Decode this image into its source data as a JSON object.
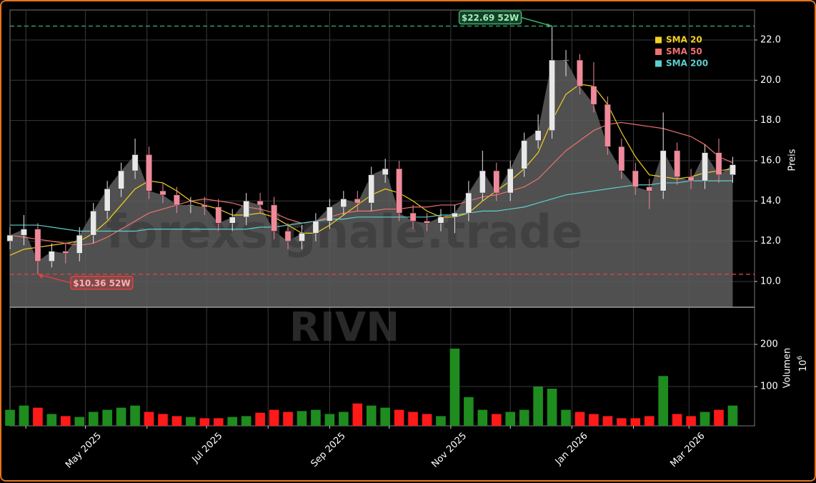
{
  "chart_data": {
    "type": "candlestick",
    "watermark": "forexsignale.trade",
    "symbol": "RIVN",
    "y_label": "Preis",
    "volume_label": "Volumen",
    "volume_scale": {
      "base": "10",
      "exponent": "6"
    },
    "x": [
      0,
      7,
      14,
      21,
      28,
      35,
      42,
      49,
      56,
      63,
      70,
      77,
      84,
      91,
      98,
      105,
      112,
      119,
      126,
      133,
      140,
      147,
      154,
      161,
      168,
      175,
      182,
      189,
      196,
      203,
      210,
      217,
      224,
      231,
      238,
      245,
      252,
      259,
      266,
      273,
      280,
      287,
      294,
      301,
      308,
      315,
      322,
      329,
      336,
      343,
      350,
      357,
      364
    ],
    "open": [
      12.0,
      12.3,
      12.6,
      11.0,
      11.5,
      11.4,
      12.3,
      13.5,
      14.6,
      15.5,
      16.3,
      14.5,
      14.3,
      13.8,
      13.8,
      13.7,
      12.9,
      13.2,
      14.0,
      13.8,
      12.5,
      12.0,
      12.4,
      13.0,
      13.7,
      14.1,
      13.9,
      15.3,
      15.6,
      13.4,
      13.0,
      12.9,
      13.2,
      13.4,
      14.4,
      15.5,
      14.4,
      15.6,
      17.0,
      17.5,
      21.0,
      21.0,
      19.7,
      18.8,
      16.7,
      15.5,
      14.7,
      14.5,
      16.5,
      15.2,
      15.0,
      16.4,
      15.3
    ],
    "high": [
      12.7,
      13.3,
      12.9,
      11.9,
      11.9,
      12.7,
      13.9,
      15.0,
      15.9,
      17.1,
      16.7,
      14.9,
      14.7,
      14.2,
      14.2,
      14.1,
      13.6,
      14.4,
      14.4,
      14.2,
      12.9,
      12.8,
      13.4,
      14.1,
      14.5,
      14.5,
      15.7,
      16.1,
      16.0,
      13.8,
      13.4,
      13.6,
      13.8,
      15.0,
      16.5,
      15.9,
      16.0,
      17.4,
      18.3,
      22.69,
      21.5,
      21.3,
      20.9,
      19.2,
      17.1,
      15.9,
      15.1,
      18.4,
      16.9,
      15.6,
      16.8,
      17.1,
      16.2
    ],
    "low": [
      11.6,
      11.8,
      10.36,
      10.7,
      10.9,
      11.0,
      11.9,
      13.1,
      14.2,
      15.1,
      14.1,
      13.9,
      13.4,
      13.4,
      13.3,
      12.5,
      12.5,
      12.8,
      13.4,
      12.1,
      11.6,
      11.6,
      12.0,
      12.6,
      13.3,
      13.5,
      13.5,
      14.9,
      13.0,
      12.6,
      12.5,
      12.5,
      12.4,
      13.0,
      14.0,
      14.0,
      14.0,
      15.2,
      16.6,
      17.1,
      20.2,
      19.3,
      18.4,
      16.3,
      15.1,
      14.3,
      13.6,
      14.1,
      14.8,
      14.6,
      14.6,
      14.9,
      14.9
    ],
    "close": [
      12.3,
      12.6,
      11.0,
      11.5,
      11.4,
      12.3,
      13.5,
      14.6,
      15.5,
      16.3,
      14.5,
      14.3,
      13.8,
      13.8,
      13.7,
      12.9,
      13.2,
      14.0,
      13.8,
      12.5,
      12.0,
      12.4,
      13.0,
      13.7,
      14.1,
      13.9,
      15.3,
      15.6,
      13.4,
      13.0,
      12.9,
      13.2,
      13.4,
      14.4,
      15.5,
      14.4,
      15.6,
      17.0,
      17.5,
      21.0,
      21.0,
      19.7,
      18.8,
      16.7,
      15.5,
      14.7,
      14.5,
      16.5,
      15.2,
      15.0,
      16.4,
      15.3,
      15.8
    ],
    "volume": [
      45,
      55,
      50,
      35,
      30,
      28,
      40,
      45,
      50,
      55,
      40,
      35,
      30,
      28,
      25,
      25,
      28,
      30,
      38,
      45,
      40,
      42,
      45,
      35,
      40,
      60,
      55,
      50,
      45,
      40,
      35,
      30,
      190,
      75,
      45,
      35,
      40,
      45,
      100,
      95,
      45,
      40,
      35,
      30,
      25,
      25,
      30,
      125,
      35,
      30,
      40,
      45,
      55
    ],
    "up_color": "#e8e8e8",
    "down_color": "#f08a9a",
    "volume_up_color": "#1e8c1e",
    "volume_down_color": "#ff1a1a",
    "area_color": "#5e5e5e",
    "series": [
      {
        "name": "SMA 20",
        "color": "#f5d020",
        "values": [
          11.3,
          11.6,
          11.7,
          11.8,
          11.9,
          12.0,
          12.4,
          13.0,
          13.8,
          14.6,
          15.0,
          14.9,
          14.5,
          14.0,
          13.8,
          13.6,
          13.3,
          13.3,
          13.4,
          13.2,
          12.8,
          12.4,
          12.4,
          12.8,
          13.3,
          13.8,
          14.3,
          14.6,
          14.4,
          14.0,
          13.5,
          13.2,
          13.2,
          13.4,
          14.0,
          14.5,
          15.0,
          15.6,
          16.4,
          18.0,
          19.3,
          19.8,
          19.7,
          18.8,
          17.4,
          16.2,
          15.3,
          15.2,
          15.1,
          15.2,
          15.4,
          15.5,
          15.6
        ]
      },
      {
        "name": "SMA 50",
        "color": "#f07070",
        "values": [
          12.3,
          12.2,
          12.1,
          12.0,
          11.9,
          11.8,
          11.9,
          12.2,
          12.6,
          13.0,
          13.4,
          13.6,
          13.8,
          14.0,
          14.1,
          14.0,
          13.9,
          13.7,
          13.6,
          13.4,
          13.1,
          12.9,
          13.0,
          13.2,
          13.4,
          13.5,
          13.5,
          13.6,
          13.6,
          13.7,
          13.7,
          13.8,
          13.8,
          14.0,
          14.2,
          14.3,
          14.5,
          14.7,
          15.1,
          15.8,
          16.5,
          17.0,
          17.5,
          17.8,
          17.9,
          17.8,
          17.7,
          17.6,
          17.4,
          17.2,
          16.8,
          16.2,
          15.9
        ]
      },
      {
        "name": "SMA 200",
        "color": "#5ecfcf",
        "values": [
          12.8,
          12.8,
          12.8,
          12.7,
          12.6,
          12.5,
          12.5,
          12.5,
          12.5,
          12.5,
          12.6,
          12.6,
          12.6,
          12.6,
          12.6,
          12.6,
          12.6,
          12.6,
          12.7,
          12.7,
          12.8,
          12.9,
          13.0,
          13.1,
          13.1,
          13.2,
          13.2,
          13.2,
          13.2,
          13.2,
          13.2,
          13.3,
          13.3,
          13.4,
          13.5,
          13.5,
          13.6,
          13.7,
          13.9,
          14.1,
          14.3,
          14.4,
          14.5,
          14.6,
          14.7,
          14.8,
          14.8,
          14.9,
          14.9,
          15.0,
          15.0,
          15.0,
          15.0
        ]
      }
    ],
    "annotations": [
      {
        "text": "$22.69 52W",
        "value": 22.69,
        "x": 273,
        "color": "#3cb371"
      },
      {
        "text": "$10.36 52W",
        "value": 10.36,
        "x": 14,
        "color": "#e04040"
      }
    ],
    "xlim": [
      0,
      375
    ],
    "xticks": [
      {
        "value": 38,
        "label": "May 2025"
      },
      {
        "value": 99,
        "label": "Jul 2025"
      },
      {
        "value": 161,
        "label": "Sep 2025"
      },
      {
        "value": 222,
        "label": "Nov 2025"
      },
      {
        "value": 283,
        "label": "Jan 2026"
      },
      {
        "value": 342,
        "label": "Mar 2026"
      }
    ],
    "minor_xticks": [
      8,
      69,
      130,
      191,
      252,
      314
    ],
    "ylim": [
      8.72,
      23.49
    ],
    "yticks": [
      {
        "value": 10,
        "label": "10.0"
      },
      {
        "value": 12,
        "label": "12.0"
      },
      {
        "value": 14,
        "label": "14.0"
      },
      {
        "value": 16,
        "label": "16.0"
      },
      {
        "value": 18,
        "label": "18.0"
      },
      {
        "value": 20,
        "label": "20.0"
      },
      {
        "value": 22,
        "label": "22.0"
      }
    ],
    "volume_ylim": [
      7,
      288
    ],
    "volume_yticks": [
      100,
      200
    ],
    "grid": true
  }
}
